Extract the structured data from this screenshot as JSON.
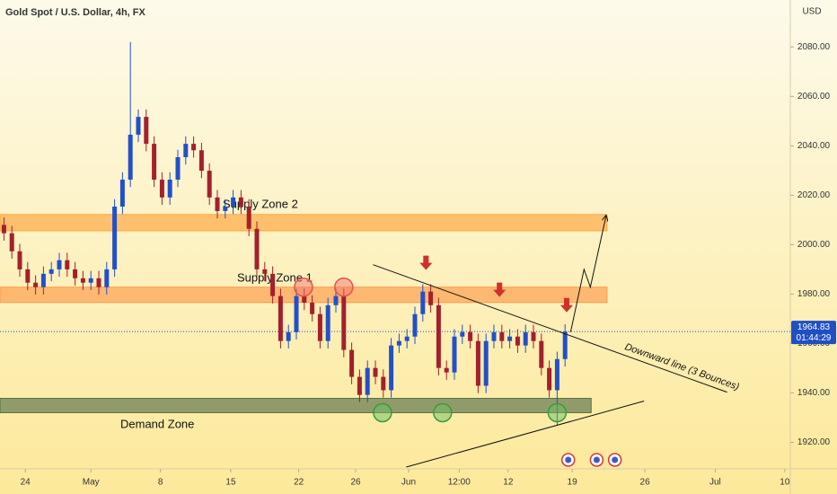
{
  "chart_data": {
    "type": "candlestick",
    "title": "Gold Spot / U.S. Dollar, 4h, FX",
    "currency": "USD",
    "last_price": {
      "value": 1964.83,
      "label": "1964.83"
    },
    "countdown": "01:44:29",
    "up_color": "#2250c8",
    "down_color": "#a3202c",
    "open": [
      2008.0,
      2004.6,
      1997.3,
      1990.0,
      1984.6,
      1982.8,
      1988.2,
      1990.0,
      1993.7,
      1990.0,
      1986.4,
      1984.6,
      1986.4,
      1982.8,
      1990.0,
      2015.4,
      2026.3,
      2044.5,
      2051.7,
      2040.8,
      2026.3,
      2019.1,
      2026.3,
      2035.4,
      2040.8,
      2038.2,
      2029.9,
      2019.1,
      2013.6,
      2015.4,
      2019.1,
      2015.4,
      2006.4,
      1990.0,
      1988.2,
      1979.2,
      1961.0,
      1964.6,
      1979.2,
      1976.5,
      1971.9,
      1961.0,
      1975.5,
      1979.2,
      1957.4,
      1946.5,
      1939.2,
      1950.1,
      1946.5,
      1941.1,
      1959.2,
      1961.0,
      1962.8,
      1971.9,
      1981.0,
      1975.5,
      1950.1,
      1948.3,
      1962.8,
      1964.6,
      1961.0,
      1942.9,
      1961.0,
      1964.6,
      1961.0,
      1962.8,
      1959.2,
      1964.6,
      1961.0,
      1950.1,
      1941.1,
      1953.7
    ],
    "high": [
      2011.0,
      2007.6,
      2000.3,
      1993.0,
      1987.6,
      1991.2,
      1993.0,
      1996.7,
      1996.7,
      1993.0,
      1989.4,
      1989.4,
      1989.4,
      1993.0,
      2018.4,
      2029.3,
      2082.0,
      2054.7,
      2054.7,
      2043.8,
      2029.3,
      2029.3,
      2038.4,
      2043.8,
      2043.8,
      2041.2,
      2032.9,
      2022.1,
      2018.4,
      2022.1,
      2022.1,
      2018.4,
      2009.4,
      1993.0,
      1991.2,
      1982.2,
      1967.6,
      1982.2,
      1982.2,
      1979.5,
      1974.9,
      1978.5,
      1982.2,
      1982.2,
      1960.4,
      1949.5,
      1953.1,
      1953.1,
      1949.5,
      1962.2,
      1964.0,
      1965.8,
      1974.9,
      1984.0,
      1984.0,
      1978.5,
      1953.1,
      1965.8,
      1967.6,
      1967.6,
      1964.0,
      1964.0,
      1967.6,
      1967.6,
      1965.8,
      1965.8,
      1967.6,
      1967.6,
      1964.0,
      1953.1,
      1956.7,
      1967.8
    ],
    "low": [
      2001.6,
      1994.3,
      1987.0,
      1981.6,
      1979.8,
      1979.8,
      1985.2,
      1987.0,
      1987.0,
      1983.4,
      1981.6,
      1981.6,
      1979.8,
      1979.8,
      1987.0,
      2012.4,
      2023.3,
      2041.5,
      2037.8,
      2023.3,
      2016.1,
      2016.1,
      2023.3,
      2032.4,
      2035.2,
      2026.9,
      2016.1,
      2010.6,
      2010.6,
      2012.4,
      2012.4,
      2003.4,
      1987.0,
      1985.2,
      1976.2,
      1958.0,
      1958.0,
      1961.6,
      1973.5,
      1968.9,
      1958.0,
      1958.0,
      1972.5,
      1954.4,
      1943.5,
      1936.2,
      1936.2,
      1943.5,
      1938.1,
      1938.1,
      1956.2,
      1958.0,
      1959.8,
      1968.9,
      1972.5,
      1947.1,
      1945.3,
      1945.3,
      1959.8,
      1958.0,
      1939.9,
      1939.9,
      1958.0,
      1958.0,
      1958.0,
      1956.2,
      1956.2,
      1958.0,
      1947.1,
      1938.1,
      1927.0,
      1950.7
    ],
    "close": [
      2004.6,
      1997.3,
      1990.0,
      1984.6,
      1982.8,
      1988.2,
      1990.0,
      1993.7,
      1990.0,
      1986.4,
      1984.6,
      1986.4,
      1982.8,
      1990.0,
      2015.4,
      2026.3,
      2044.5,
      2051.7,
      2040.8,
      2026.3,
      2019.1,
      2026.3,
      2035.4,
      2040.8,
      2038.2,
      2029.9,
      2019.1,
      2013.6,
      2015.4,
      2019.1,
      2015.4,
      2006.4,
      1990.0,
      1988.2,
      1979.2,
      1961.0,
      1964.6,
      1979.2,
      1976.5,
      1971.9,
      1961.0,
      1975.5,
      1979.2,
      1957.4,
      1946.5,
      1939.2,
      1950.1,
      1946.5,
      1941.1,
      1959.2,
      1961.0,
      1962.8,
      1971.9,
      1981.0,
      1975.5,
      1950.1,
      1948.3,
      1962.8,
      1964.6,
      1961.0,
      1942.9,
      1961.0,
      1964.6,
      1961.0,
      1962.8,
      1959.2,
      1964.6,
      1961.0,
      1950.1,
      1941.1,
      1953.7,
      1964.8
    ],
    "xlim": [
      0,
      100
    ],
    "xticks": [
      {
        "value": 3.2,
        "label": "24"
      },
      {
        "value": 11.5,
        "label": "May"
      },
      {
        "value": 20.3,
        "label": "8"
      },
      {
        "value": 29.2,
        "label": "15"
      },
      {
        "value": 37.8,
        "label": "22"
      },
      {
        "value": 45,
        "label": "26"
      },
      {
        "value": 51.7,
        "label": "Jun"
      },
      {
        "value": 58.1,
        "label": "12:00"
      },
      {
        "value": 64.3,
        "label": "12"
      },
      {
        "value": 72.4,
        "label": "19"
      },
      {
        "value": 81.6,
        "label": "26"
      },
      {
        "value": 90.5,
        "label": "Jul"
      },
      {
        "value": 99.3,
        "label": "10"
      }
    ],
    "ylim": [
      1910,
      2099
    ],
    "yticks": [
      {
        "value": 1920,
        "label": "1920.00"
      },
      {
        "value": 1940,
        "label": "1940.00"
      },
      {
        "value": 1960,
        "label": "1960.00"
      },
      {
        "value": 1980,
        "label": "1980.00"
      },
      {
        "value": 2000,
        "label": "2000.00"
      },
      {
        "value": 2020,
        "label": "2020.00"
      },
      {
        "value": 2040,
        "label": "2040.00"
      },
      {
        "value": 2060,
        "label": "2060.00"
      },
      {
        "value": 2080,
        "label": "2080.00"
      }
    ],
    "zones": [
      {
        "name": "Supply Zone 2",
        "color": "#ffa53c",
        "x_end": 76.8,
        "y": [
          2005.6,
          2012.2
        ]
      },
      {
        "name": "Supply Zone 1",
        "color": "#ff9a4a",
        "x_end": 76.8,
        "y": [
          1976.6,
          1982.8
        ]
      },
      {
        "name": "Demand Zone",
        "color": "#56704a",
        "x_end": 74.8,
        "y": [
          1932.0,
          1937.8
        ]
      }
    ],
    "trendlines": [
      {
        "name": "Downward line (3 Bounces)",
        "x": [
          47.2,
          92.0
        ],
        "y": [
          1991.9,
          1940.3
        ]
      },
      {
        "x": [
          51.4,
          81.5
        ],
        "y": [
          1910.0,
          1936.7
        ]
      }
    ],
    "projection": {
      "x": [
        72.2,
        73.9,
        74.7,
        76.7
      ],
      "y": [
        1964.6,
        1990.0,
        1982.8,
        2011.8
      ]
    },
    "red_circles": {
      "x": [
        38.4,
        43.5
      ],
      "y": [
        1982.8,
        1982.8
      ]
    },
    "green_circles": {
      "x": [
        48.4,
        56.0,
        70.5
      ],
      "y": [
        1932.0,
        1932.0,
        1932.0
      ]
    },
    "arrows": {
      "x": [
        53.9,
        63.2,
        71.7
      ],
      "y": [
        1991.9,
        1981.0,
        1974.8
      ]
    },
    "events_x": [
      71.9,
      75.5,
      77.8
    ]
  }
}
